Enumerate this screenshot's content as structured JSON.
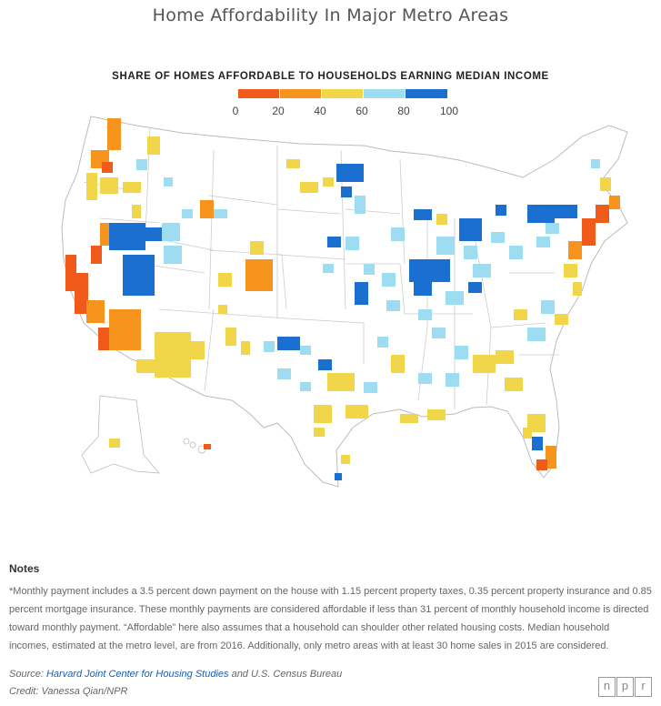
{
  "title": "Home Affordability In Major Metro Areas",
  "legend": {
    "title": "SHARE OF HOMES AFFORDABLE TO HOUSEHOLDS EARNING MEDIAN INCOME",
    "ticks": [
      "0",
      "20",
      "40",
      "60",
      "80",
      "100"
    ],
    "colors": [
      "#f05a1a",
      "#f7941d",
      "#f2d64a",
      "#9edcf2",
      "#1a6fd1"
    ]
  },
  "notes": {
    "heading": "Notes",
    "body": "*Monthly payment includes a 3.5 percent down payment on the house with 1.15 percent property taxes, 0.35 percent property insurance and 0.85 percent mortgage insurance. These monthly payments are considered affordable if less than 31 percent of monthly household income is directed toward monthly payment. “Affordable” here also assumes that a household can shoulder other related housing costs. Median household incomes, estimated at the metro level, are from 2016. Additionally, only metro areas with at least 30 home sales in 2015 are considered."
  },
  "source": {
    "prefix": "Source: ",
    "link": "Harvard Joint Center for Housing Studies",
    "suffix": " and U.S. Census Bureau"
  },
  "credit": "Credit: Vanessa Qian/NPR",
  "logo": [
    "n",
    "p",
    "r"
  ]
}
